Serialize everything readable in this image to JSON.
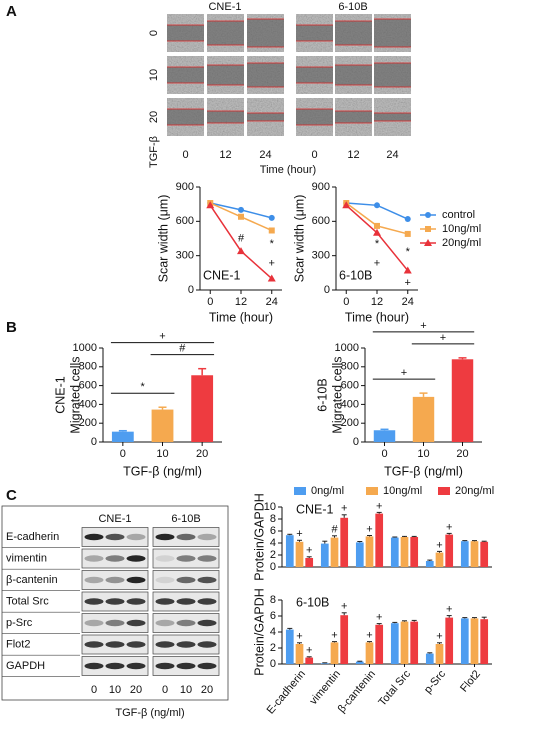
{
  "panel_labels": [
    "A",
    "B",
    "C"
  ],
  "scratch": {
    "groups": [
      "CNE-1",
      "6-10B"
    ],
    "rows": [
      "0",
      "10",
      "20"
    ],
    "row_title": "TGF-β",
    "cols": [
      "0",
      "12",
      "24",
      "0",
      "12",
      "24"
    ],
    "x_title": "Time (hour)"
  },
  "blot": {
    "groups": [
      "CNE-1",
      "6-10B"
    ],
    "rows": [
      "E-cadherin",
      "vimentin",
      "β-cantenin",
      "Total Src",
      "p-Src",
      "Flot2",
      "GAPDH"
    ],
    "lanes": [
      "0",
      "10",
      "20",
      "0",
      "10",
      "20"
    ],
    "x_title": "TGF-β (ng/ml)"
  },
  "chart_data": [
    {
      "type": "line",
      "panel_label": "CNE-1",
      "x_label": "Time (hour)",
      "y_label": "Scar width (μm)",
      "x": [
        0,
        12,
        24
      ],
      "xlim": [
        -4,
        28
      ],
      "xticks": [
        0,
        12,
        24
      ],
      "ylim": [
        0,
        900
      ],
      "yticks": [
        0,
        300,
        600,
        900
      ],
      "series": [
        {
          "color": "#3d8ee8",
          "marker": "circle",
          "values": [
            760,
            700,
            630
          ]
        },
        {
          "color": "#f5a94f",
          "marker": "square",
          "values": [
            760,
            640,
            520
          ]
        },
        {
          "color": "#e8323a",
          "marker": "triangle",
          "values": [
            740,
            340,
            100
          ]
        }
      ],
      "annotations": [
        {
          "text": "#",
          "x": 12,
          "y": 450
        },
        {
          "text": "*",
          "x": 24,
          "y": 400
        },
        {
          "text": "+",
          "x": 24,
          "y": 230
        }
      ]
    },
    {
      "type": "line",
      "panel_label": "6-10B",
      "x_label": "Time (hour)",
      "y_label": "Scar width (μm)",
      "x": [
        0,
        12,
        24
      ],
      "xlim": [
        -4,
        28
      ],
      "xticks": [
        0,
        12,
        24
      ],
      "ylim": [
        0,
        900
      ],
      "yticks": [
        0,
        300,
        600,
        900
      ],
      "legend": "right",
      "series": [
        {
          "name": "control",
          "color": "#3d8ee8",
          "marker": "circle",
          "values": [
            760,
            740,
            620
          ]
        },
        {
          "name": "10ng/ml",
          "color": "#f5a94f",
          "marker": "square",
          "values": [
            760,
            560,
            490
          ]
        },
        {
          "name": "20ng/ml",
          "color": "#e8323a",
          "marker": "triangle",
          "values": [
            740,
            500,
            170
          ]
        }
      ],
      "annotations": [
        {
          "text": "*",
          "x": 12,
          "y": 400
        },
        {
          "text": "+",
          "x": 12,
          "y": 230
        },
        {
          "text": "*",
          "x": 24,
          "y": 330
        },
        {
          "text": "+",
          "x": 24,
          "y": 60
        }
      ]
    },
    {
      "type": "bar",
      "y_label": [
        "CNE-1",
        "Migrated cells"
      ],
      "x_label": "TGF-β (ng/ml)",
      "categories": [
        "0",
        "10",
        "20"
      ],
      "values": [
        110,
        345,
        710
      ],
      "errors": [
        10,
        25,
        70
      ],
      "colors": [
        "#4e9df0",
        "#f5a94f",
        "#ee3b40"
      ],
      "ylim": [
        0,
        1000
      ],
      "yticks": [
        0,
        200,
        400,
        600,
        800,
        1000
      ],
      "comparisons": [
        {
          "pair": [
            "0",
            "10"
          ],
          "label": "*"
        },
        {
          "pair": [
            "10",
            "20"
          ],
          "label": "#"
        },
        {
          "pair": [
            "0",
            "20"
          ],
          "label": "+"
        }
      ]
    },
    {
      "type": "bar",
      "y_label": [
        "6-10B",
        "Migrated cells"
      ],
      "x_label": "TGF-β (ng/ml)",
      "categories": [
        "0",
        "10",
        "20"
      ],
      "values": [
        125,
        480,
        880
      ],
      "errors": [
        10,
        40,
        15
      ],
      "colors": [
        "#4e9df0",
        "#f5a94f",
        "#ee3b40"
      ],
      "ylim": [
        0,
        1000
      ],
      "yticks": [
        0,
        200,
        400,
        600,
        800,
        1000
      ],
      "comparisons": [
        {
          "pair": [
            "0",
            "10"
          ],
          "label": "+"
        },
        {
          "pair": [
            "10",
            "20"
          ],
          "label": "+"
        },
        {
          "pair": [
            "0",
            "20"
          ],
          "label": "+"
        }
      ]
    },
    {
      "type": "grouped_bar",
      "panel_label": "CNE-1",
      "y_label": "Protein/GAPDH",
      "ylim": [
        0,
        10
      ],
      "yticks": [
        0,
        2,
        4,
        6,
        8,
        10
      ],
      "legend": "top",
      "series": [
        {
          "name": "0ng/ml",
          "color": "#4e9df0",
          "values": [
            5.3,
            3.9,
            4.1,
            4.9,
            1.0,
            4.3
          ],
          "errors": [
            0.15,
            0.4,
            0.15,
            0.1,
            0.15,
            0.1
          ],
          "significance": [
            null,
            null,
            null,
            null,
            null,
            null
          ]
        },
        {
          "name": "10ng/ml",
          "color": "#f5a94f",
          "values": [
            4.2,
            4.9,
            5.1,
            5.0,
            2.4,
            4.3
          ],
          "errors": [
            0.25,
            0.3,
            0.15,
            0.1,
            0.2,
            0.1
          ],
          "significance": [
            "+",
            "#",
            "+",
            null,
            "+",
            null
          ]
        },
        {
          "name": "20ng/ml",
          "color": "#ee3b40",
          "values": [
            1.5,
            8.2,
            8.9,
            5.0,
            5.4,
            4.2
          ],
          "errors": [
            0.2,
            0.5,
            0.2,
            0.1,
            0.2,
            0.1
          ],
          "significance": [
            "+",
            "+",
            "+",
            null,
            "+",
            null
          ]
        }
      ]
    },
    {
      "type": "grouped_bar",
      "panel_label": "6-10B",
      "y_label": "Protein/GAPDH",
      "ylim": [
        0,
        8
      ],
      "yticks": [
        0,
        2,
        4,
        6,
        8
      ],
      "categories": [
        "E-cadherin",
        "vimentin",
        "β-cantenin",
        "Total Src",
        "p-Src",
        "Flot2"
      ],
      "series": [
        {
          "color": "#4e9df0",
          "values": [
            4.3,
            0.1,
            0.3,
            5.1,
            1.3,
            5.7
          ],
          "errors": [
            0.15,
            0.05,
            0.05,
            0.1,
            0.1,
            0.1
          ],
          "significance": [
            null,
            null,
            null,
            null,
            null,
            null
          ]
        },
        {
          "color": "#f5a94f",
          "values": [
            2.5,
            2.7,
            2.7,
            5.3,
            2.5,
            5.7
          ],
          "errors": [
            0.15,
            0.1,
            0.1,
            0.1,
            0.15,
            0.1
          ],
          "significance": [
            "+",
            "+",
            "+",
            null,
            "+",
            null
          ]
        },
        {
          "color": "#ee3b40",
          "values": [
            0.8,
            6.1,
            4.9,
            5.3,
            5.8,
            5.6
          ],
          "errors": [
            0.1,
            0.3,
            0.15,
            0.15,
            0.25,
            0.25
          ],
          "significance": [
            "+",
            "+",
            "+",
            null,
            "+",
            null
          ]
        }
      ]
    }
  ]
}
